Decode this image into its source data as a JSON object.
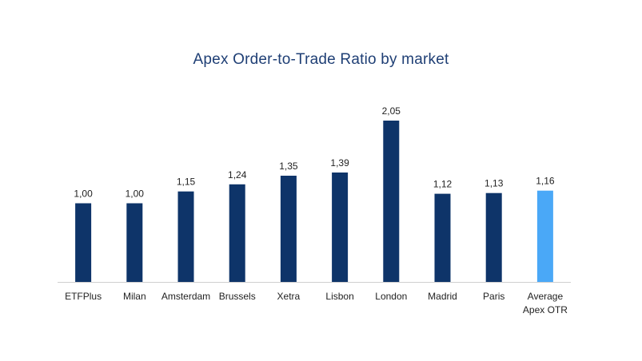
{
  "chart_data": {
    "type": "bar",
    "title": "Apex Order-to-Trade Ratio by market",
    "xlabel": "",
    "ylabel": "",
    "categories": [
      "ETFPlus",
      "Milan",
      "Amsterdam",
      "Brussels",
      "Xetra",
      "Lisbon",
      "London",
      "Madrid",
      "Paris",
      "Average Apex OTR"
    ],
    "values": [
      1.0,
      1.0,
      1.15,
      1.24,
      1.35,
      1.39,
      2.05,
      1.12,
      1.13,
      1.16
    ],
    "value_labels": [
      "1,00",
      "1,00",
      "1,15",
      "1,24",
      "1,35",
      "1,39",
      "2,05",
      "1,12",
      "1,13",
      "1,16"
    ],
    "ylim": [
      0,
      2.05
    ],
    "grid": false,
    "legend": "none",
    "colors": {
      "bar": "#0e3469",
      "highlight": "#4aa8f7",
      "axis": "#cfcfcf"
    },
    "highlight_index": 9
  }
}
